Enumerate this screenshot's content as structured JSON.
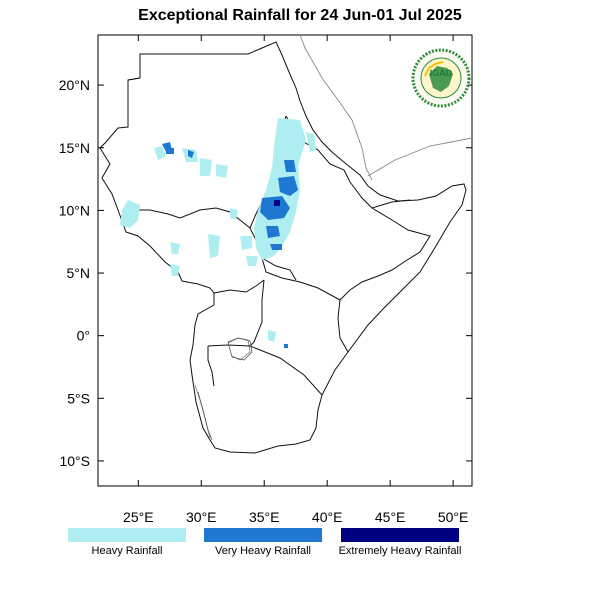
{
  "title": "Exceptional Rainfall for 24 Jun-01 Jul 2025",
  "logo": {
    "text": "IGAD",
    "colors": {
      "ring": "#2e8b3a",
      "inner": "#f2c200",
      "text": "#1a7a3a"
    }
  },
  "axes": {
    "lat_ticks": [
      {
        "value": 20,
        "label": "20°N"
      },
      {
        "value": 15,
        "label": "15°N"
      },
      {
        "value": 10,
        "label": "10°N"
      },
      {
        "value": 5,
        "label": "5°N"
      },
      {
        "value": 0,
        "label": "0°"
      },
      {
        "value": -5,
        "label": "5°S"
      },
      {
        "value": -10,
        "label": "10°S"
      }
    ],
    "lon_ticks": [
      {
        "value": 25,
        "label": "25°E"
      },
      {
        "value": 30,
        "label": "30°E"
      },
      {
        "value": 35,
        "label": "35°E"
      },
      {
        "value": 40,
        "label": "40°E"
      },
      {
        "value": 45,
        "label": "45°E"
      },
      {
        "value": 50,
        "label": "50°E"
      }
    ],
    "lon_range": [
      21.8,
      51.5
    ],
    "lat_range": [
      -12,
      24
    ]
  },
  "legend": [
    {
      "label": "Heavy Rainfall",
      "color": "#aeeef0"
    },
    {
      "label": "Very Heavy Rainfall",
      "color": "#1e78d2"
    },
    {
      "label": "Extremely Heavy Rainfall",
      "color": "#000080"
    }
  ]
}
